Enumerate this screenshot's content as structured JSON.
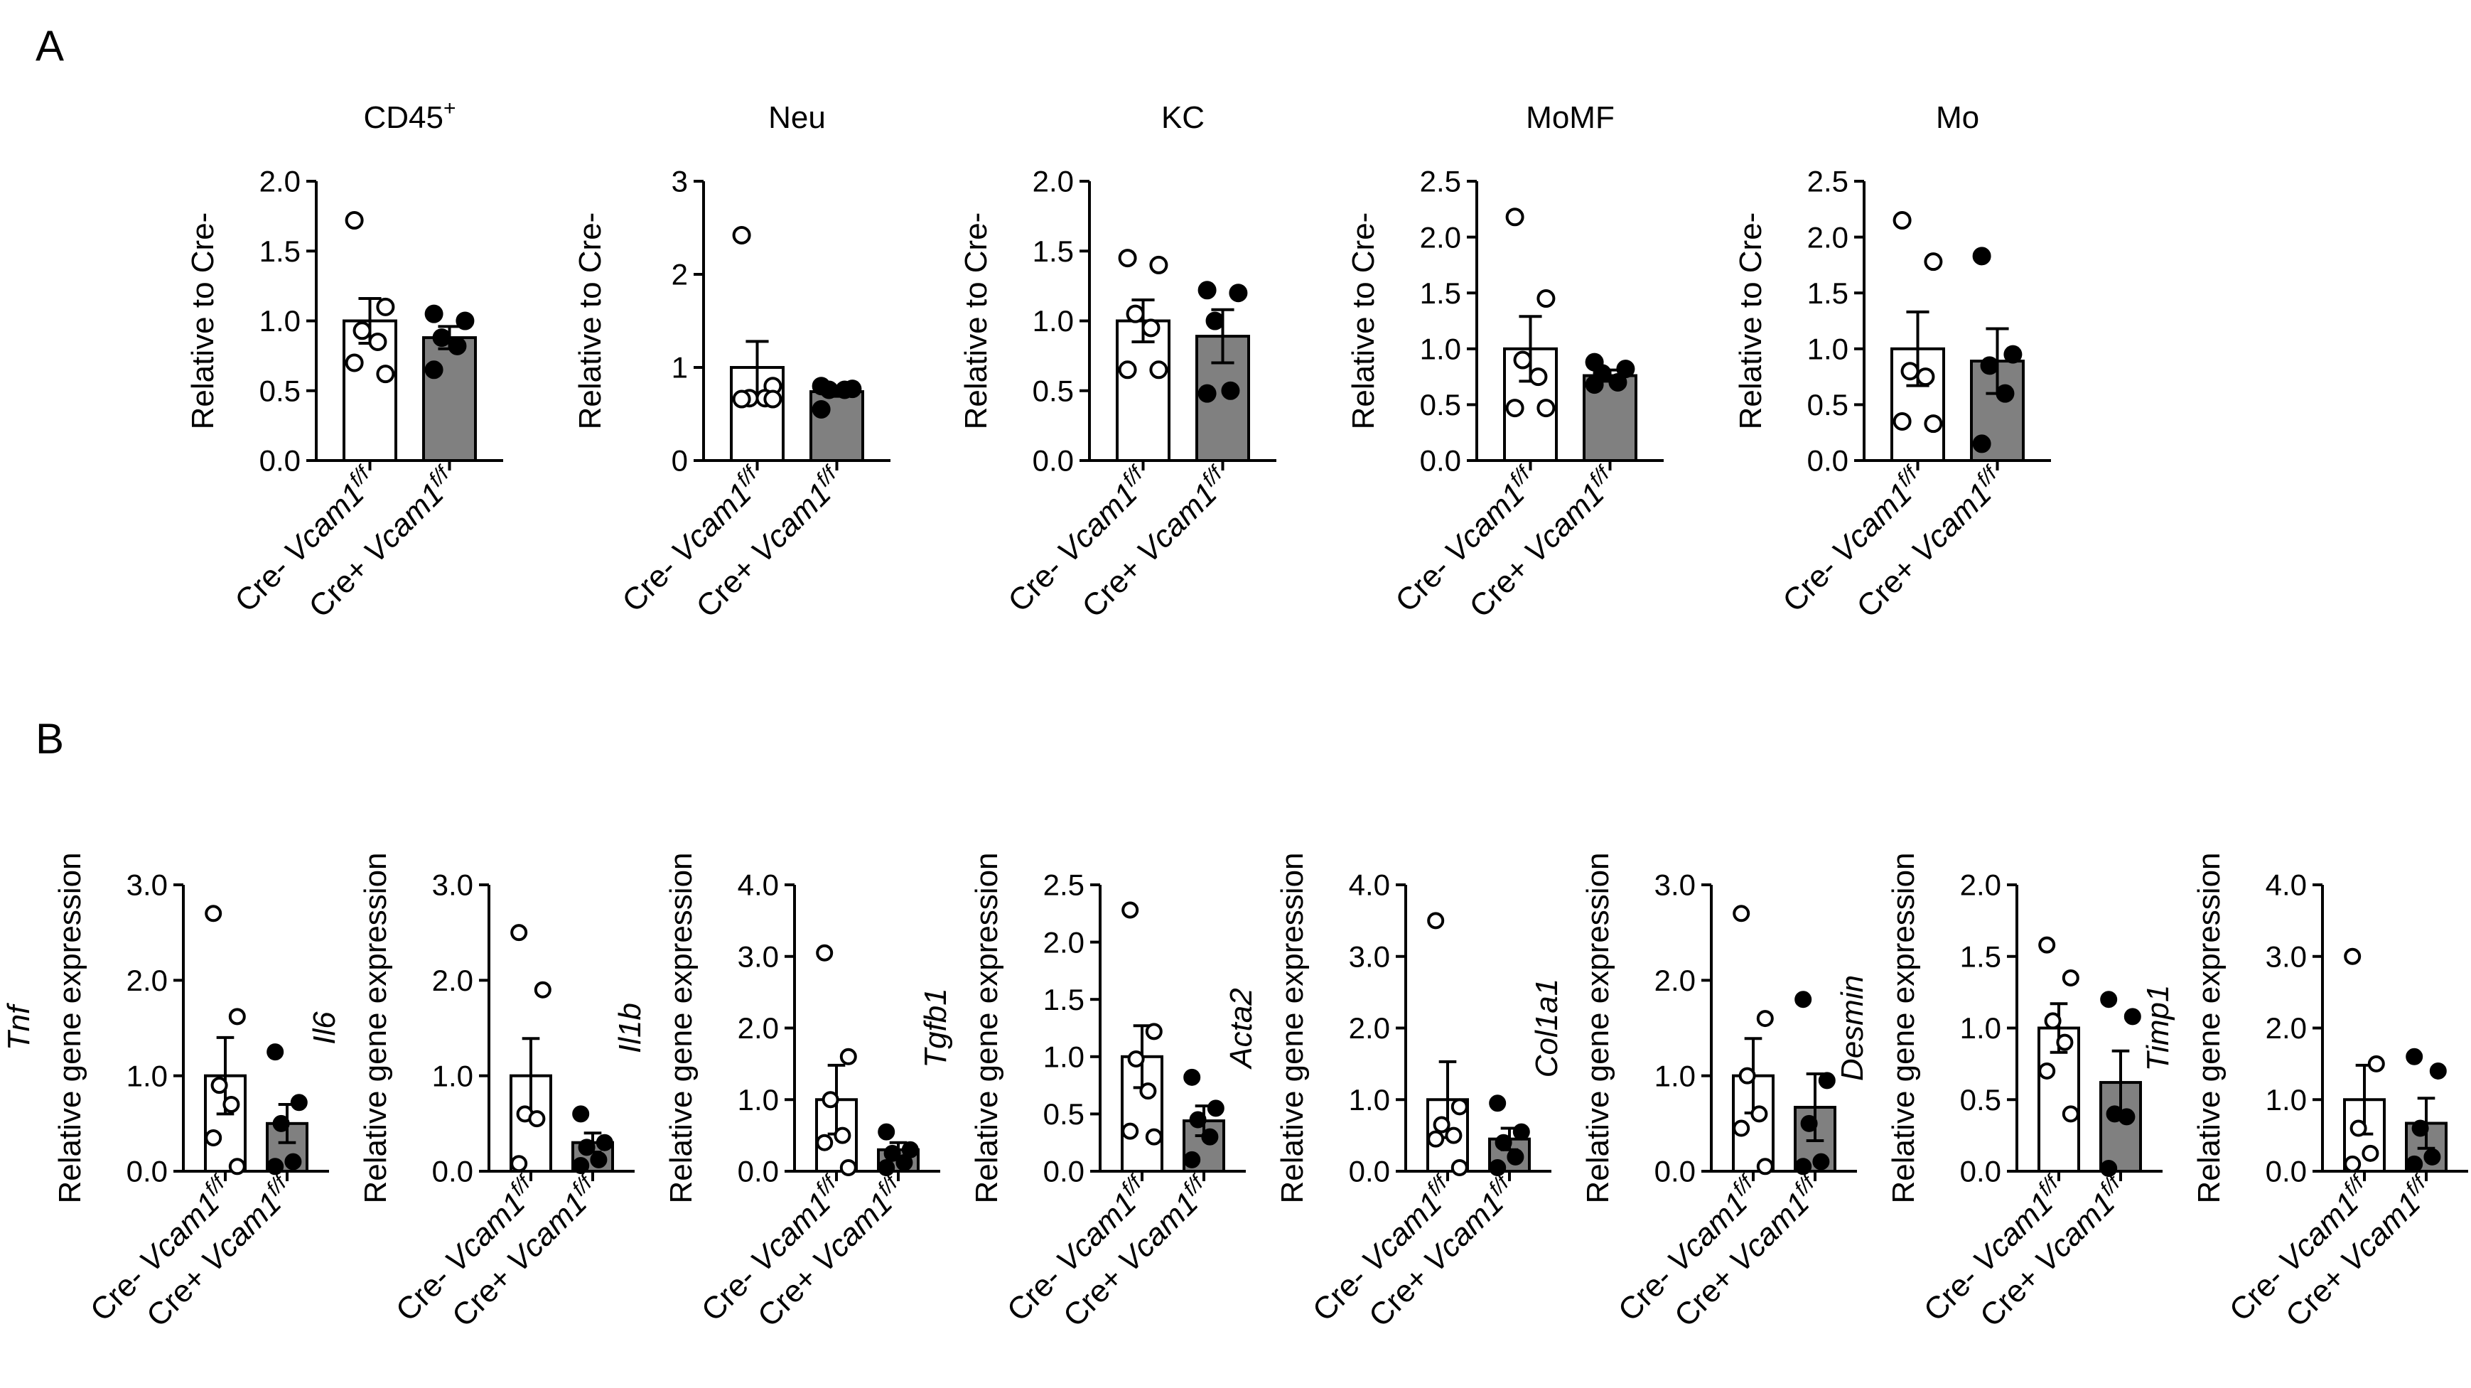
{
  "panels": [
    {
      "label": "A"
    },
    {
      "label": "B"
    }
  ],
  "group_labels": {
    "cre_neg_prefix": "Cre- ",
    "cre_pos_prefix": "Cre+ ",
    "gene": "Vcam1",
    "superscript": "f/f"
  },
  "colors": {
    "cre_neg_fill": "#ffffff",
    "cre_pos_fill": "#808080",
    "ink": "#000000"
  },
  "chart_data": [
    {
      "id": "cd45",
      "panel": "A",
      "type": "bar",
      "title": "CD45",
      "title_sup": "+",
      "title_italic": false,
      "ylabel": "Relative to Cre-",
      "ylim": [
        0,
        2.0
      ],
      "yticks": [
        "0.0",
        "0.5",
        "1.0",
        "1.5",
        "2.0"
      ],
      "categories": [
        "Cre- Vcam1 f/f",
        "Cre+ Vcam1 f/f"
      ],
      "series": [
        {
          "name": "Cre- Vcam1 f/f",
          "mean": 1.0,
          "sem": 0.16,
          "points": [
            1.72,
            1.1,
            0.93,
            0.85,
            0.7,
            0.62
          ]
        },
        {
          "name": "Cre+ Vcam1 f/f",
          "mean": 0.88,
          "sem": 0.08,
          "points": [
            1.05,
            1.0,
            0.88,
            0.82,
            0.65
          ]
        }
      ]
    },
    {
      "id": "neu",
      "panel": "A",
      "type": "bar",
      "title": "Neu",
      "title_sup": "",
      "title_italic": false,
      "ylabel": "Relative to Cre-",
      "ylim": [
        0,
        3
      ],
      "yticks": [
        "0",
        "1",
        "2",
        "3"
      ],
      "categories": [
        "Cre- Vcam1 f/f",
        "Cre+ Vcam1 f/f"
      ],
      "series": [
        {
          "name": "Cre- Vcam1 f/f",
          "mean": 1.0,
          "sem": 0.28,
          "points": [
            2.42,
            0.8,
            0.67,
            0.67,
            0.66,
            0.66
          ]
        },
        {
          "name": "Cre+ Vcam1 f/f",
          "mean": 0.74,
          "sem": 0.05,
          "points": [
            0.8,
            0.77,
            0.76,
            0.76,
            0.55
          ]
        }
      ]
    },
    {
      "id": "kc",
      "panel": "A",
      "type": "bar",
      "title": "KC",
      "title_sup": "",
      "title_italic": false,
      "ylabel": "Relative to Cre-",
      "ylim": [
        0,
        2.0
      ],
      "yticks": [
        "0.0",
        "0.5",
        "1.0",
        "1.5",
        "2.0"
      ],
      "categories": [
        "Cre- Vcam1 f/f",
        "Cre+ Vcam1 f/f"
      ],
      "series": [
        {
          "name": "Cre- Vcam1 f/f",
          "mean": 1.0,
          "sem": 0.15,
          "points": [
            1.45,
            1.4,
            1.05,
            0.95,
            0.65,
            0.65
          ]
        },
        {
          "name": "Cre+ Vcam1 f/f",
          "mean": 0.89,
          "sem": 0.19,
          "points": [
            1.22,
            1.2,
            1.0,
            0.5,
            0.48
          ]
        }
      ]
    },
    {
      "id": "momf",
      "panel": "A",
      "type": "bar",
      "title": "MoMF",
      "title_sup": "",
      "title_italic": false,
      "ylabel": "Relative to Cre-",
      "ylim": [
        0,
        2.5
      ],
      "yticks": [
        "0.0",
        "0.5",
        "1.0",
        "1.5",
        "2.0",
        "2.5"
      ],
      "categories": [
        "Cre- Vcam1 f/f",
        "Cre+ Vcam1 f/f"
      ],
      "series": [
        {
          "name": "Cre- Vcam1 f/f",
          "mean": 1.0,
          "sem": 0.29,
          "points": [
            2.18,
            1.45,
            0.9,
            0.75,
            0.47,
            0.47
          ]
        },
        {
          "name": "Cre+ Vcam1 f/f",
          "mean": 0.76,
          "sem": 0.05,
          "points": [
            0.88,
            0.82,
            0.78,
            0.7,
            0.68
          ]
        }
      ]
    },
    {
      "id": "mo",
      "panel": "A",
      "type": "bar",
      "title": "Mo",
      "title_sup": "",
      "title_italic": false,
      "ylabel": "Relative to Cre-",
      "ylim": [
        0,
        2.5
      ],
      "yticks": [
        "0.0",
        "0.5",
        "1.0",
        "1.5",
        "2.0",
        "2.5"
      ],
      "categories": [
        "Cre- Vcam1 f/f",
        "Cre+ Vcam1 f/f"
      ],
      "series": [
        {
          "name": "Cre- Vcam1 f/f",
          "mean": 1.0,
          "sem": 0.33,
          "points": [
            2.15,
            1.78,
            0.8,
            0.75,
            0.35,
            0.33
          ]
        },
        {
          "name": "Cre+ Vcam1 f/f",
          "mean": 0.89,
          "sem": 0.29,
          "points": [
            1.83,
            0.95,
            0.85,
            0.6,
            0.15
          ]
        }
      ]
    },
    {
      "id": "tnf",
      "panel": "B",
      "type": "bar",
      "title": "Tnf",
      "title_italic": true,
      "ylabel": "Relative gene expression",
      "ylim": [
        0,
        3.0
      ],
      "yticks": [
        "0.0",
        "1.0",
        "2.0",
        "3.0"
      ],
      "categories": [
        "Cre- Vcam1 f/f",
        "Cre+ Vcam1 f/f"
      ],
      "series": [
        {
          "name": "Cre- Vcam1 f/f",
          "mean": 1.0,
          "sem": 0.4,
          "points": [
            2.7,
            1.62,
            0.9,
            0.7,
            0.35,
            0.05
          ]
        },
        {
          "name": "Cre+ Vcam1 f/f",
          "mean": 0.5,
          "sem": 0.2,
          "points": [
            1.25,
            0.72,
            0.5,
            0.1,
            0.05
          ]
        }
      ]
    },
    {
      "id": "il6",
      "panel": "B",
      "type": "bar",
      "title": "Il6",
      "title_italic": true,
      "ylabel": "Relative gene expression",
      "ylim": [
        0,
        3.0
      ],
      "yticks": [
        "0.0",
        "1.0",
        "2.0",
        "3.0"
      ],
      "categories": [
        "Cre- Vcam1 f/f",
        "Cre+ Vcam1 f/f"
      ],
      "series": [
        {
          "name": "Cre- Vcam1 f/f",
          "mean": 1.0,
          "sem": 0.39,
          "points": [
            2.5,
            1.9,
            0.6,
            0.55,
            0.08
          ]
        },
        {
          "name": "Cre+ Vcam1 f/f",
          "mean": 0.3,
          "sem": 0.1,
          "points": [
            0.6,
            0.3,
            0.25,
            0.12,
            0.06
          ]
        }
      ]
    },
    {
      "id": "il1b",
      "panel": "B",
      "type": "bar",
      "title": "Il1b",
      "title_italic": true,
      "ylabel": "Relative gene expression",
      "ylim": [
        0,
        4.0
      ],
      "yticks": [
        "0.0",
        "1.0",
        "2.0",
        "3.0",
        "4.0"
      ],
      "categories": [
        "Cre- Vcam1 f/f",
        "Cre+ Vcam1 f/f"
      ],
      "series": [
        {
          "name": "Cre- Vcam1 f/f",
          "mean": 1.0,
          "sem": 0.48,
          "points": [
            3.05,
            1.6,
            1.0,
            0.5,
            0.4,
            0.05
          ]
        },
        {
          "name": "Cre+ Vcam1 f/f",
          "mean": 0.3,
          "sem": 0.1,
          "points": [
            0.55,
            0.3,
            0.25,
            0.12,
            0.05
          ]
        }
      ]
    },
    {
      "id": "tgfb1",
      "panel": "B",
      "type": "bar",
      "title": "Tgfb1",
      "title_italic": true,
      "ylabel": "Relative gene expression",
      "ylim": [
        0,
        2.5
      ],
      "yticks": [
        "0.0",
        "0.5",
        "1.0",
        "1.5",
        "2.0",
        "2.5"
      ],
      "categories": [
        "Cre- Vcam1 f/f",
        "Cre+ Vcam1 f/f"
      ],
      "series": [
        {
          "name": "Cre- Vcam1 f/f",
          "mean": 1.0,
          "sem": 0.27,
          "points": [
            2.28,
            1.22,
            0.98,
            0.7,
            0.35,
            0.3
          ]
        },
        {
          "name": "Cre+ Vcam1 f/f",
          "mean": 0.44,
          "sem": 0.13,
          "points": [
            0.82,
            0.55,
            0.45,
            0.3,
            0.1
          ]
        }
      ]
    },
    {
      "id": "acta2",
      "panel": "B",
      "type": "bar",
      "title": "Acta2",
      "title_italic": true,
      "ylabel": "Relative gene expression",
      "ylim": [
        0,
        4.0
      ],
      "yticks": [
        "0.0",
        "1.0",
        "2.0",
        "3.0",
        "4.0"
      ],
      "categories": [
        "Cre- Vcam1 f/f",
        "Cre+ Vcam1 f/f"
      ],
      "series": [
        {
          "name": "Cre- Vcam1 f/f",
          "mean": 1.0,
          "sem": 0.53,
          "points": [
            3.5,
            0.9,
            0.65,
            0.5,
            0.45,
            0.05
          ]
        },
        {
          "name": "Cre+ Vcam1 f/f",
          "mean": 0.45,
          "sem": 0.15,
          "points": [
            0.95,
            0.55,
            0.4,
            0.2,
            0.05
          ]
        }
      ]
    },
    {
      "id": "col1a1",
      "panel": "B",
      "type": "bar",
      "title": "Col1a1",
      "title_italic": true,
      "ylabel": "Relative gene expression",
      "ylim": [
        0,
        3.0
      ],
      "yticks": [
        "0.0",
        "1.0",
        "2.0",
        "3.0"
      ],
      "categories": [
        "Cre- Vcam1 f/f",
        "Cre+ Vcam1 f/f"
      ],
      "series": [
        {
          "name": "Cre- Vcam1 f/f",
          "mean": 1.0,
          "sem": 0.39,
          "points": [
            2.7,
            1.6,
            1.0,
            0.6,
            0.45,
            0.05
          ]
        },
        {
          "name": "Cre+ Vcam1 f/f",
          "mean": 0.67,
          "sem": 0.35,
          "points": [
            1.8,
            0.95,
            0.5,
            0.1,
            0.05
          ]
        }
      ]
    },
    {
      "id": "desmin",
      "panel": "B",
      "type": "bar",
      "title": "Desmin",
      "title_italic": true,
      "ylabel": "Relative gene expression",
      "ylim": [
        0,
        2.0
      ],
      "yticks": [
        "0.0",
        "0.5",
        "1.0",
        "1.5",
        "2.0"
      ],
      "categories": [
        "Cre- Vcam1 f/f",
        "Cre+ Vcam1 f/f"
      ],
      "series": [
        {
          "name": "Cre- Vcam1 f/f",
          "mean": 1.0,
          "sem": 0.17,
          "points": [
            1.58,
            1.35,
            1.05,
            0.9,
            0.7,
            0.4
          ]
        },
        {
          "name": "Cre+ Vcam1 f/f",
          "mean": 0.62,
          "sem": 0.22,
          "points": [
            1.2,
            1.08,
            0.4,
            0.38,
            0.02
          ]
        }
      ]
    },
    {
      "id": "timp1",
      "panel": "B",
      "type": "bar",
      "title": "Timp1",
      "title_italic": true,
      "ylabel": "Relative gene expression",
      "ylim": [
        0,
        4.0
      ],
      "yticks": [
        "0.0",
        "1.0",
        "2.0",
        "3.0",
        "4.0"
      ],
      "categories": [
        "Cre- Vcam1 f/f",
        "Cre+ Vcam1 f/f"
      ],
      "series": [
        {
          "name": "Cre- Vcam1 f/f",
          "mean": 1.0,
          "sem": 0.48,
          "points": [
            3.0,
            1.5,
            0.6,
            0.25,
            0.1
          ]
        },
        {
          "name": "Cre+ Vcam1 f/f",
          "mean": 0.67,
          "sem": 0.35,
          "points": [
            1.6,
            1.4,
            0.6,
            0.2,
            0.1
          ]
        }
      ]
    }
  ]
}
